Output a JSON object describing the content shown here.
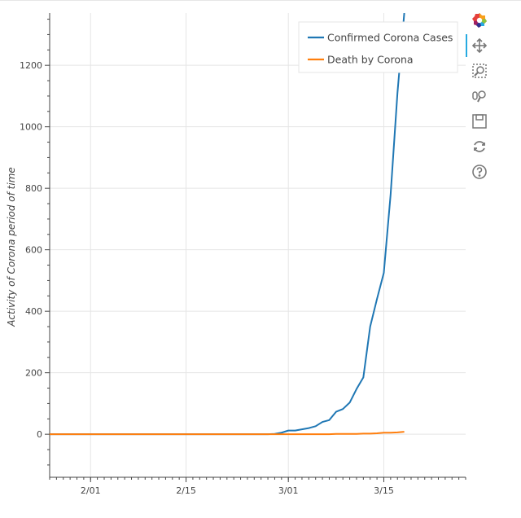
{
  "chart_data": {
    "type": "line",
    "title": "",
    "xlabel": "",
    "ylabel": "Activity of Corona period of time",
    "x_tick_labels": [
      "2/01",
      "2/15",
      "3/01",
      "3/15"
    ],
    "y_ticks": [
      0,
      200,
      400,
      600,
      800,
      1000,
      1200
    ],
    "ylim": [
      -140,
      1370
    ],
    "xlim": [
      "2020-01-26",
      "2020-03-27"
    ],
    "grid": true,
    "legend_position": "top-right",
    "series": [
      {
        "name": "Confirmed Corona Cases",
        "color": "#1f77b4",
        "points": [
          [
            "2020-01-22",
            0
          ],
          [
            "2020-02-01",
            0
          ],
          [
            "2020-02-15",
            0
          ],
          [
            "2020-02-27",
            0
          ],
          [
            "2020-02-28",
            1
          ],
          [
            "2020-02-29",
            5
          ],
          [
            "2020-03-01",
            12
          ],
          [
            "2020-03-02",
            12
          ],
          [
            "2020-03-03",
            16
          ],
          [
            "2020-03-04",
            20
          ],
          [
            "2020-03-05",
            26
          ],
          [
            "2020-03-06",
            40
          ],
          [
            "2020-03-07",
            46
          ],
          [
            "2020-03-08",
            73
          ],
          [
            "2020-03-09",
            82
          ],
          [
            "2020-03-10",
            103
          ],
          [
            "2020-03-11",
            147
          ],
          [
            "2020-03-12",
            185
          ],
          [
            "2020-03-13",
            350
          ],
          [
            "2020-03-14",
            440
          ],
          [
            "2020-03-15",
            525
          ],
          [
            "2020-03-16",
            780
          ],
          [
            "2020-03-17",
            1110
          ],
          [
            "2020-03-18",
            1370
          ]
        ]
      },
      {
        "name": "Death by Corona",
        "color": "#ff7f0e",
        "points": [
          [
            "2020-01-22",
            0
          ],
          [
            "2020-02-15",
            0
          ],
          [
            "2020-03-06",
            0
          ],
          [
            "2020-03-07",
            0
          ],
          [
            "2020-03-08",
            1
          ],
          [
            "2020-03-09",
            1
          ],
          [
            "2020-03-10",
            1
          ],
          [
            "2020-03-11",
            1
          ],
          [
            "2020-03-12",
            2
          ],
          [
            "2020-03-13",
            2
          ],
          [
            "2020-03-14",
            3
          ],
          [
            "2020-03-15",
            5
          ],
          [
            "2020-03-16",
            5
          ],
          [
            "2020-03-17",
            6
          ],
          [
            "2020-03-18",
            8
          ]
        ]
      }
    ]
  },
  "toolbar": {
    "tools": [
      {
        "name": "bokeh-logo-icon",
        "active": false
      },
      {
        "name": "pan-icon",
        "active": true
      },
      {
        "name": "box-zoom-icon",
        "active": false
      },
      {
        "name": "wheel-zoom-icon",
        "active": false
      },
      {
        "name": "save-icon",
        "active": false
      },
      {
        "name": "reset-icon",
        "active": false
      },
      {
        "name": "help-icon",
        "active": false
      }
    ]
  }
}
